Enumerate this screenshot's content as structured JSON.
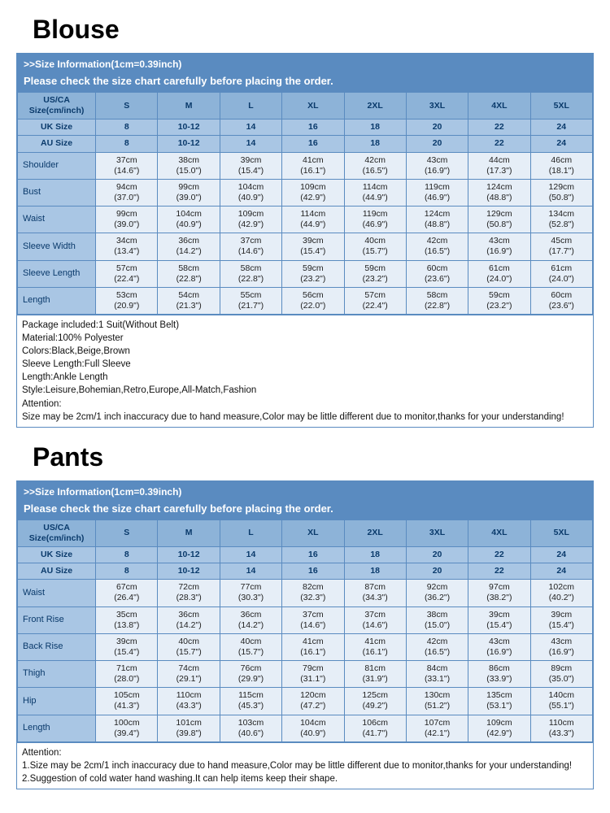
{
  "colors": {
    "header_bg": "#5a8bc0",
    "hdr_dark_bg": "#8db3d8",
    "hdr_med_bg": "#a9c6e4",
    "data_bg": "#e6eef7",
    "border": "#5a8bc0",
    "text_dark": "#0a3a6b"
  },
  "common": {
    "info_line1": ">>Size Information(1cm=0.39inch)",
    "info_line2": "Please check the size chart carefully before placing the order.",
    "col0_label": "US/CA Size(cm/inch)",
    "uk_label": "UK Size",
    "au_label": "AU Size",
    "sizes": [
      "S",
      "M",
      "L",
      "XL",
      "2XL",
      "3XL",
      "4XL",
      "5XL"
    ],
    "uk": [
      "8",
      "10-12",
      "14",
      "16",
      "18",
      "20",
      "22",
      "24"
    ],
    "au": [
      "8",
      "10-12",
      "14",
      "16",
      "18",
      "20",
      "22",
      "24"
    ]
  },
  "blouse": {
    "title": "Blouse",
    "rows": [
      {
        "label": "Shoulder",
        "vals": [
          [
            "37cm",
            "(14.6\")"
          ],
          [
            "38cm",
            "(15.0\")"
          ],
          [
            "39cm",
            "(15.4\")"
          ],
          [
            "41cm",
            "(16.1\")"
          ],
          [
            "42cm",
            "(16.5\")"
          ],
          [
            "43cm",
            "(16.9\")"
          ],
          [
            "44cm",
            "(17.3\")"
          ],
          [
            "46cm",
            "(18.1\")"
          ]
        ]
      },
      {
        "label": "Bust",
        "vals": [
          [
            "94cm",
            "(37.0\")"
          ],
          [
            "99cm",
            "(39.0\")"
          ],
          [
            "104cm",
            "(40.9\")"
          ],
          [
            "109cm",
            "(42.9\")"
          ],
          [
            "114cm",
            "(44.9\")"
          ],
          [
            "119cm",
            "(46.9\")"
          ],
          [
            "124cm",
            "(48.8\")"
          ],
          [
            "129cm",
            "(50.8\")"
          ]
        ]
      },
      {
        "label": "Waist",
        "vals": [
          [
            "99cm",
            "(39.0\")"
          ],
          [
            "104cm",
            "(40.9\")"
          ],
          [
            "109cm",
            "(42.9\")"
          ],
          [
            "114cm",
            "(44.9\")"
          ],
          [
            "119cm",
            "(46.9\")"
          ],
          [
            "124cm",
            "(48.8\")"
          ],
          [
            "129cm",
            "(50.8\")"
          ],
          [
            "134cm",
            "(52.8\")"
          ]
        ]
      },
      {
        "label": "Sleeve Width",
        "vals": [
          [
            "34cm",
            "(13.4\")"
          ],
          [
            "36cm",
            "(14.2\")"
          ],
          [
            "37cm",
            "(14.6\")"
          ],
          [
            "39cm",
            "(15.4\")"
          ],
          [
            "40cm",
            "(15.7\")"
          ],
          [
            "42cm",
            "(16.5\")"
          ],
          [
            "43cm",
            "(16.9\")"
          ],
          [
            "45cm",
            "(17.7\")"
          ]
        ]
      },
      {
        "label": "Sleeve Length",
        "vals": [
          [
            "57cm",
            "(22.4\")"
          ],
          [
            "58cm",
            "(22.8\")"
          ],
          [
            "58cm",
            "(22.8\")"
          ],
          [
            "59cm",
            "(23.2\")"
          ],
          [
            "59cm",
            "(23.2\")"
          ],
          [
            "60cm",
            "(23.6\")"
          ],
          [
            "61cm",
            "(24.0\")"
          ],
          [
            "61cm",
            "(24.0\")"
          ]
        ]
      },
      {
        "label": "Length",
        "vals": [
          [
            "53cm",
            "(20.9\")"
          ],
          [
            "54cm",
            "(21.3\")"
          ],
          [
            "55cm",
            "(21.7\")"
          ],
          [
            "56cm",
            "(22.0\")"
          ],
          [
            "57cm",
            "(22.4\")"
          ],
          [
            "58cm",
            "(22.8\")"
          ],
          [
            "59cm",
            "(23.2\")"
          ],
          [
            "60cm",
            "(23.6\")"
          ]
        ]
      }
    ],
    "notes": [
      "Package included:1 Suit(Without Belt)",
      "Material:100% Polyester",
      "Colors:Black,Beige,Brown",
      "Sleeve Length:Full Sleeve",
      "Length:Ankle Length",
      "Style:Leisure,Bohemian,Retro,Europe,All-Match,Fashion",
      "Attention:",
      "Size may be 2cm/1 inch inaccuracy due to hand measure,Color may be little different due to monitor,thanks for your understanding!"
    ]
  },
  "pants": {
    "title": "Pants",
    "rows": [
      {
        "label": "Waist",
        "vals": [
          [
            "67cm",
            "(26.4\")"
          ],
          [
            "72cm",
            "(28.3\")"
          ],
          [
            "77cm",
            "(30.3\")"
          ],
          [
            "82cm",
            "(32.3\")"
          ],
          [
            "87cm",
            "(34.3\")"
          ],
          [
            "92cm",
            "(36.2\")"
          ],
          [
            "97cm",
            "(38.2\")"
          ],
          [
            "102cm",
            "(40.2\")"
          ]
        ]
      },
      {
        "label": "Front Rise",
        "vals": [
          [
            "35cm",
            "(13.8\")"
          ],
          [
            "36cm",
            "(14.2\")"
          ],
          [
            "36cm",
            "(14.2\")"
          ],
          [
            "37cm",
            "(14.6\")"
          ],
          [
            "37cm",
            "(14.6\")"
          ],
          [
            "38cm",
            "(15.0\")"
          ],
          [
            "39cm",
            "(15.4\")"
          ],
          [
            "39cm",
            "(15.4\")"
          ]
        ]
      },
      {
        "label": "Back Rise",
        "vals": [
          [
            "39cm",
            "(15.4\")"
          ],
          [
            "40cm",
            "(15.7\")"
          ],
          [
            "40cm",
            "(15.7\")"
          ],
          [
            "41cm",
            "(16.1\")"
          ],
          [
            "41cm",
            "(16.1\")"
          ],
          [
            "42cm",
            "(16.5\")"
          ],
          [
            "43cm",
            "(16.9\")"
          ],
          [
            "43cm",
            "(16.9\")"
          ]
        ]
      },
      {
        "label": "Thigh",
        "vals": [
          [
            "71cm",
            "(28.0\")"
          ],
          [
            "74cm",
            "(29.1\")"
          ],
          [
            "76cm",
            "(29.9\")"
          ],
          [
            "79cm",
            "(31.1\")"
          ],
          [
            "81cm",
            "(31.9\")"
          ],
          [
            "84cm",
            "(33.1\")"
          ],
          [
            "86cm",
            "(33.9\")"
          ],
          [
            "89cm",
            "(35.0\")"
          ]
        ]
      },
      {
        "label": "Hip",
        "vals": [
          [
            "105cm",
            "(41.3\")"
          ],
          [
            "110cm",
            "(43.3\")"
          ],
          [
            "115cm",
            "(45.3\")"
          ],
          [
            "120cm",
            "(47.2\")"
          ],
          [
            "125cm",
            "(49.2\")"
          ],
          [
            "130cm",
            "(51.2\")"
          ],
          [
            "135cm",
            "(53.1\")"
          ],
          [
            "140cm",
            "(55.1\")"
          ]
        ]
      },
      {
        "label": "Length",
        "vals": [
          [
            "100cm",
            "(39.4\")"
          ],
          [
            "101cm",
            "(39.8\")"
          ],
          [
            "103cm",
            "(40.6\")"
          ],
          [
            "104cm",
            "(40.9\")"
          ],
          [
            "106cm",
            "(41.7\")"
          ],
          [
            "107cm",
            "(42.1\")"
          ],
          [
            "109cm",
            "(42.9\")"
          ],
          [
            "110cm",
            "(43.3\")"
          ]
        ]
      }
    ],
    "notes": [
      "Attention:",
      "1.Size may be 2cm/1 inch inaccuracy due to hand measure,Color may be little different due to monitor,thanks for your understanding!",
      "2.Suggestion of cold water hand washing.It can help items keep their shape."
    ]
  }
}
